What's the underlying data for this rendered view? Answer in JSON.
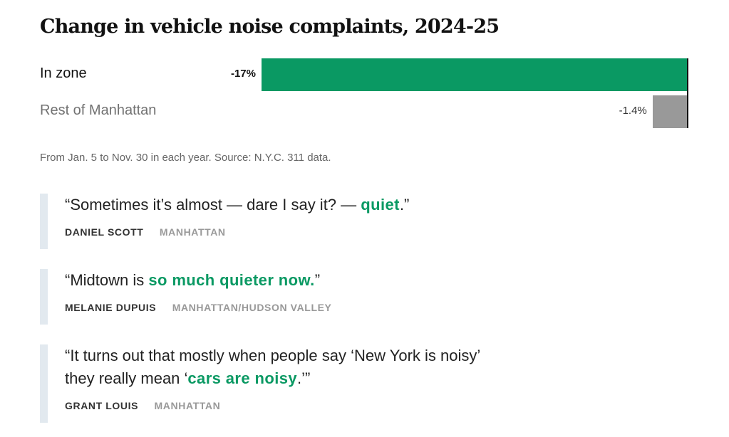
{
  "chart_data": {
    "type": "bar",
    "orientation": "horizontal",
    "title": "Change in vehicle noise complaints, 2024-25",
    "categories": [
      "In zone",
      "Rest of Manhattan"
    ],
    "values": [
      -17,
      -1.4
    ],
    "value_labels": [
      "-17%",
      "-1.4%"
    ],
    "unit": "%",
    "xlim": [
      -17,
      0
    ],
    "colors": [
      "#0a9963",
      "#999999"
    ],
    "grid": false,
    "legend": "none",
    "note": "From Jan. 5 to Nov. 30 in each year. Source: N.Y.C. 311 data."
  },
  "quotes": [
    {
      "parts": [
        {
          "text": "“Sometimes it’s almost — dare I say it? — ",
          "highlight": false
        },
        {
          "text": "quiet",
          "highlight": true
        },
        {
          "text": ".”",
          "highlight": false
        }
      ],
      "author": "DANIEL SCOTT",
      "location": "MANHATTAN"
    },
    {
      "parts": [
        {
          "text": "“Midtown is ",
          "highlight": false
        },
        {
          "text": "so much quieter now.",
          "highlight": true
        },
        {
          "text": "”",
          "highlight": false
        }
      ],
      "author": "MELANIE DUPUIS",
      "location": "MANHATTAN/HUDSON VALLEY"
    },
    {
      "parts": [
        {
          "text": "“It turns out that mostly when people say ‘New York is noisy’",
          "highlight": false
        },
        {
          "text": "\n they really mean ‘",
          "highlight": false
        },
        {
          "text": "cars are noisy",
          "highlight": true
        },
        {
          "text": ".’”",
          "highlight": false
        }
      ],
      "author": "GRANT LOUIS",
      "location": "MANHATTAN"
    }
  ]
}
